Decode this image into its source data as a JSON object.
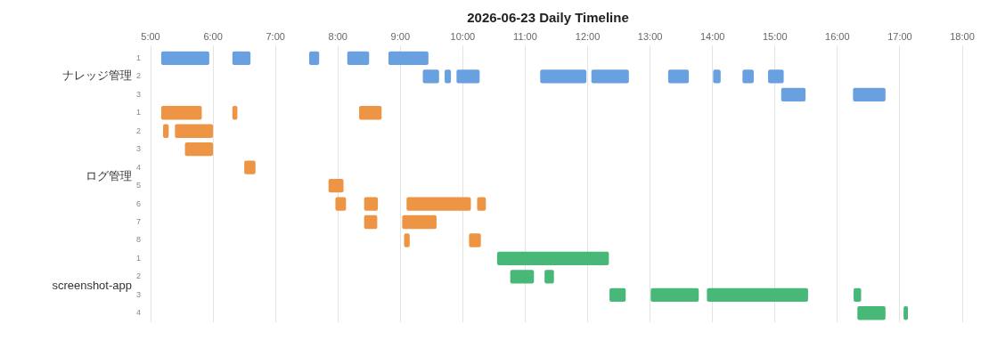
{
  "chart_data": {
    "type": "bar",
    "orientation": "horizontal",
    "title": "2026-06-23 Daily Timeline",
    "categories": [
      "1",
      "2",
      "3",
      "1",
      "2",
      "3",
      "4",
      "5",
      "6",
      "7",
      "8",
      "1",
      "2",
      "3",
      "4"
    ],
    "annotations": [
      "ナレッジ管理",
      "ログ管理",
      "screenshot-app"
    ],
    "xlim": [
      5,
      18
    ],
    "xticks": [
      {
        "value": 5,
        "label": "5:00"
      },
      {
        "value": 6,
        "label": "6:00"
      },
      {
        "value": 7,
        "label": "7:00"
      },
      {
        "value": 8,
        "label": "8:00"
      },
      {
        "value": 9,
        "label": "9:00"
      },
      {
        "value": 10,
        "label": "10:00"
      },
      {
        "value": 11,
        "label": "11:00"
      },
      {
        "value": 12,
        "label": "12:00"
      },
      {
        "value": 13,
        "label": "13:00"
      },
      {
        "value": 14,
        "label": "14:00"
      },
      {
        "value": 15,
        "label": "15:00"
      },
      {
        "value": 16,
        "label": "16:00"
      },
      {
        "value": 17,
        "label": "17:00"
      },
      {
        "value": 18,
        "label": "18:00"
      }
    ],
    "grid": "x",
    "legend": false,
    "series": [
      {
        "base": [
          5.17,
          9.36,
          15.1,
          5.17,
          5.2,
          5.55,
          6.5,
          7.85,
          7.96,
          8.42,
          9.06,
          10.55,
          10.76,
          12.35,
          16.32
        ],
        "values": [
          0.77,
          0.26,
          0.39,
          0.65,
          0.09,
          0.45,
          0.18,
          0.24,
          0.17,
          0.21,
          0.09,
          1.79,
          0.38,
          0.26,
          0.45
        ],
        "colors": [
          "#68a0e0",
          "#68a0e0",
          "#68a0e0",
          "#ee9545",
          "#ee9545",
          "#ee9545",
          "#ee9545",
          "#ee9545",
          "#ee9545",
          "#ee9545",
          "#ee9545",
          "#48b878",
          "#48b878",
          "#48b878",
          "#48b878"
        ]
      },
      {
        "base": [
          6.31,
          9.71,
          16.25,
          6.31,
          5.39,
          null,
          null,
          null,
          8.42,
          9.03,
          10.1,
          null,
          11.31,
          13.01,
          17.06
        ],
        "values": [
          0.29,
          0.1,
          0.52,
          0.08,
          0.61,
          null,
          null,
          null,
          0.22,
          0.55,
          0.19,
          null,
          0.15,
          0.77,
          0.07
        ],
        "colors": [
          "#68a0e0",
          "#68a0e0",
          "#68a0e0",
          "#ee9545",
          "#ee9545",
          "#ee9545",
          "#ee9545",
          "#ee9545",
          "#ee9545",
          "#ee9545",
          "#ee9545",
          "#48b878",
          "#48b878",
          "#48b878",
          "#48b878"
        ]
      },
      {
        "base": [
          7.54,
          9.9,
          null,
          8.34,
          null,
          null,
          null,
          null,
          9.1,
          null,
          null,
          null,
          null,
          13.91,
          null
        ],
        "values": [
          0.16,
          0.37,
          null,
          0.36,
          null,
          null,
          null,
          null,
          1.03,
          null,
          null,
          null,
          null,
          1.62,
          null
        ],
        "colors": [
          "#68a0e0",
          "#68a0e0",
          "#68a0e0",
          "#ee9545",
          "#ee9545",
          "#ee9545",
          "#ee9545",
          "#ee9545",
          "#ee9545",
          "#ee9545",
          "#ee9545",
          "#48b878",
          "#48b878",
          "#48b878",
          "#48b878"
        ]
      },
      {
        "base": [
          8.15,
          11.24,
          null,
          null,
          null,
          null,
          null,
          null,
          10.23,
          null,
          null,
          null,
          null,
          16.26,
          null
        ],
        "values": [
          0.35,
          0.74,
          null,
          null,
          null,
          null,
          null,
          null,
          0.14,
          null,
          null,
          null,
          null,
          0.12,
          null
        ],
        "colors": [
          "#68a0e0",
          "#68a0e0",
          "#68a0e0",
          "#ee9545",
          "#ee9545",
          "#ee9545",
          "#ee9545",
          "#ee9545",
          "#ee9545",
          "#ee9545",
          "#ee9545",
          "#48b878",
          "#48b878",
          "#48b878",
          "#48b878"
        ]
      },
      {
        "base": [
          8.81,
          12.06,
          null,
          null,
          null,
          null,
          null,
          null,
          null,
          null,
          null,
          null,
          null,
          null,
          null
        ],
        "values": [
          0.64,
          0.6,
          null,
          null,
          null,
          null,
          null,
          null,
          null,
          null,
          null,
          null,
          null,
          null,
          null
        ],
        "colors": [
          "#68a0e0",
          "#68a0e0",
          "#68a0e0",
          "#ee9545",
          "#ee9545",
          "#ee9545",
          "#ee9545",
          "#ee9545",
          "#ee9545",
          "#ee9545",
          "#ee9545",
          "#48b878",
          "#48b878",
          "#48b878",
          "#48b878"
        ]
      },
      {
        "base": [
          null,
          13.29,
          null,
          null,
          null,
          null,
          null,
          null,
          null,
          null,
          null,
          null,
          null,
          null,
          null
        ],
        "values": [
          null,
          0.33,
          null,
          null,
          null,
          null,
          null,
          null,
          null,
          null,
          null,
          null,
          null,
          null,
          null
        ],
        "colors": [
          "#68a0e0",
          "#68a0e0",
          "#68a0e0",
          "#ee9545",
          "#ee9545",
          "#ee9545",
          "#ee9545",
          "#ee9545",
          "#ee9545",
          "#ee9545",
          "#ee9545",
          "#48b878",
          "#48b878",
          "#48b878",
          "#48b878"
        ]
      },
      {
        "base": [
          null,
          14.01,
          null,
          null,
          null,
          null,
          null,
          null,
          null,
          null,
          null,
          null,
          null,
          null,
          null
        ],
        "values": [
          null,
          0.12,
          null,
          null,
          null,
          null,
          null,
          null,
          null,
          null,
          null,
          null,
          null,
          null,
          null
        ],
        "colors": [
          "#68a0e0",
          "#68a0e0",
          "#68a0e0",
          "#ee9545",
          "#ee9545",
          "#ee9545",
          "#ee9545",
          "#ee9545",
          "#ee9545",
          "#ee9545",
          "#ee9545",
          "#48b878",
          "#48b878",
          "#48b878",
          "#48b878"
        ]
      },
      {
        "base": [
          null,
          14.48,
          null,
          null,
          null,
          null,
          null,
          null,
          null,
          null,
          null,
          null,
          null,
          null,
          null
        ],
        "values": [
          null,
          0.18,
          null,
          null,
          null,
          null,
          null,
          null,
          null,
          null,
          null,
          null,
          null,
          null,
          null
        ],
        "colors": [
          "#68a0e0",
          "#68a0e0",
          "#68a0e0",
          "#ee9545",
          "#ee9545",
          "#ee9545",
          "#ee9545",
          "#ee9545",
          "#ee9545",
          "#ee9545",
          "#ee9545",
          "#48b878",
          "#48b878",
          "#48b878",
          "#48b878"
        ]
      },
      {
        "base": [
          null,
          14.89,
          null,
          null,
          null,
          null,
          null,
          null,
          null,
          null,
          null,
          null,
          null,
          null,
          null
        ],
        "values": [
          null,
          0.25,
          null,
          null,
          null,
          null,
          null,
          null,
          null,
          null,
          null,
          null,
          null,
          null,
          null
        ],
        "colors": [
          "#68a0e0",
          "#68a0e0",
          "#68a0e0",
          "#ee9545",
          "#ee9545",
          "#ee9545",
          "#ee9545",
          "#ee9545",
          "#ee9545",
          "#ee9545",
          "#ee9545",
          "#48b878",
          "#48b878",
          "#48b878",
          "#48b878"
        ]
      }
    ]
  }
}
